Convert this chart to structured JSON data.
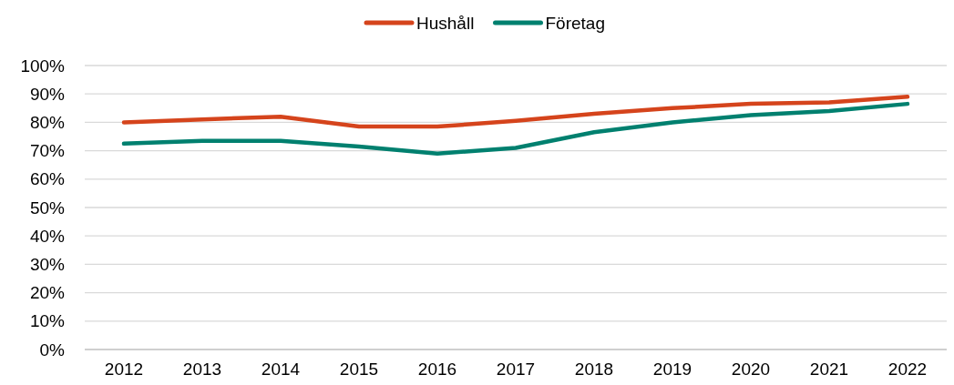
{
  "chart_data": {
    "type": "line",
    "categories": [
      "2012",
      "2013",
      "2014",
      "2015",
      "2016",
      "2017",
      "2018",
      "2019",
      "2020",
      "2021",
      "2022"
    ],
    "series": [
      {
        "name": "Hushåll",
        "color": "#d5441c",
        "values": [
          80,
          81,
          82,
          78.5,
          78.5,
          80.5,
          83,
          85,
          86.5,
          87,
          89
        ]
      },
      {
        "name": "Företag",
        "color": "#00806f",
        "values": [
          72.5,
          73.5,
          73.5,
          71.5,
          69,
          71,
          76.5,
          80,
          82.5,
          84,
          86.5
        ]
      }
    ],
    "ylim": [
      0,
      100
    ],
    "yticks": [
      {
        "value": 0,
        "label": "0%"
      },
      {
        "value": 10,
        "label": "10%"
      },
      {
        "value": 20,
        "label": "20%"
      },
      {
        "value": 30,
        "label": "30%"
      },
      {
        "value": 40,
        "label": "40%"
      },
      {
        "value": 50,
        "label": "50%"
      },
      {
        "value": 60,
        "label": "60%"
      },
      {
        "value": 70,
        "label": "70%"
      },
      {
        "value": 80,
        "label": "80%"
      },
      {
        "value": 90,
        "label": "90%"
      },
      {
        "value": 100,
        "label": "100%"
      }
    ],
    "grid": "y",
    "legend": "top",
    "marker": "none",
    "line_style": "solid"
  }
}
